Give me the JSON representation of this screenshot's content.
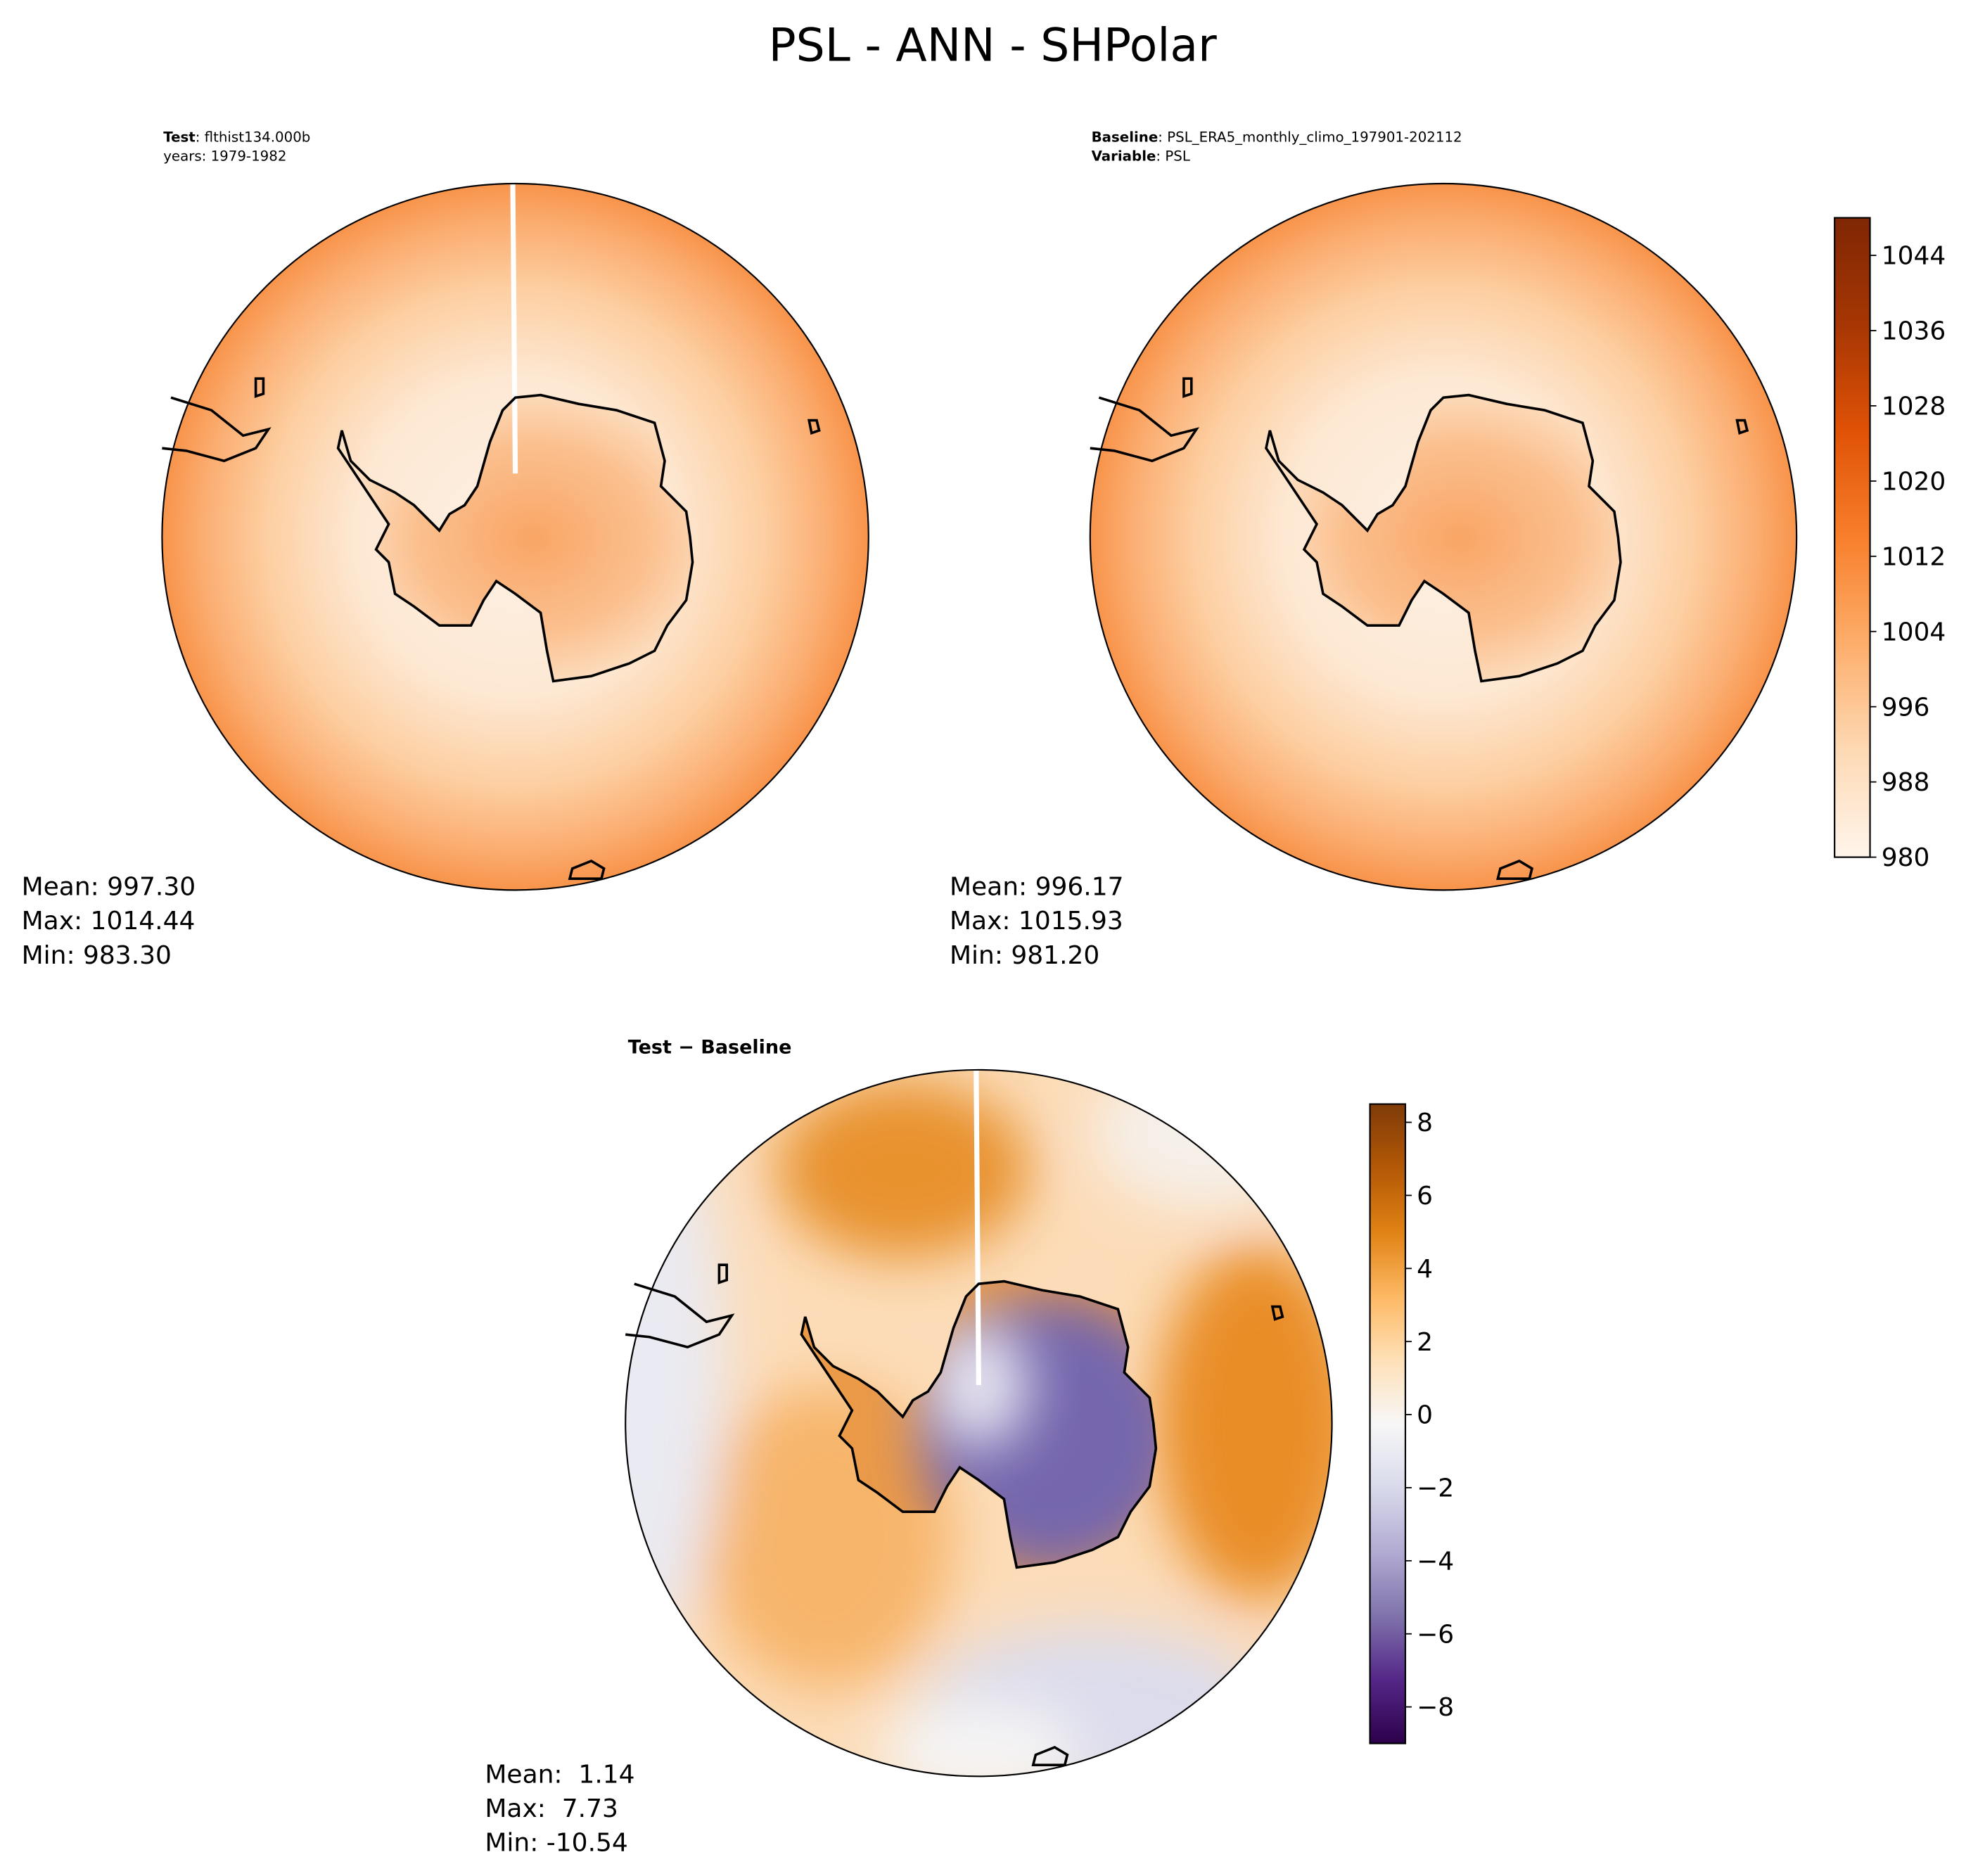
{
  "title": "PSL - ANN - SHPolar",
  "chart_data": [
    {
      "type": "contour-map",
      "header": [
        {
          "bold": "Test",
          "text": ": flthist134.000b"
        },
        {
          "text": "years: 1979-1982"
        }
      ],
      "stats": [
        "Mean: 997.30",
        "Max: 1014.44",
        "Min: 983.30"
      ]
    },
    {
      "type": "contour-map",
      "header": [
        {
          "bold": "Baseline",
          "text": ": PSL_ERA5_monthly_climo_197901-202112"
        },
        {
          "bold": "Variable",
          "text": ": PSL"
        }
      ],
      "stats": [
        "Mean: 996.17",
        "Max: 1015.93",
        "Min: 981.20"
      ],
      "colorbar": {
        "lim": [
          980,
          1048
        ],
        "ticks": [
          980,
          988,
          996,
          1004,
          1012,
          1020,
          1028,
          1036,
          1044
        ],
        "colors": [
          "#fff5eb",
          "#fdd9b4",
          "#fdae6b",
          "#f87f2c",
          "#e05206",
          "#a63603",
          "#7f2704"
        ]
      }
    },
    {
      "type": "contour-map",
      "header": [
        {
          "bold": "Test − Baseline"
        }
      ],
      "stats": [
        "Mean:  1.14",
        "Max:  7.73",
        "Min: -10.54"
      ],
      "colorbar": {
        "lim": [
          -9,
          8.5
        ],
        "ticks": [
          {
            "value": -8,
            "label": "−8"
          },
          {
            "value": -6,
            "label": "−6"
          },
          {
            "value": -4,
            "label": "−4"
          },
          {
            "value": -2,
            "label": "−2"
          },
          0,
          2,
          4,
          6,
          8
        ],
        "colors": [
          "#2d004b",
          "#542788",
          "#8073ac",
          "#b2abd2",
          "#d8daeb",
          "#f7f7f7",
          "#fee0b6",
          "#fdb863",
          "#e08214",
          "#b35806",
          "#7f3b08"
        ]
      }
    }
  ]
}
